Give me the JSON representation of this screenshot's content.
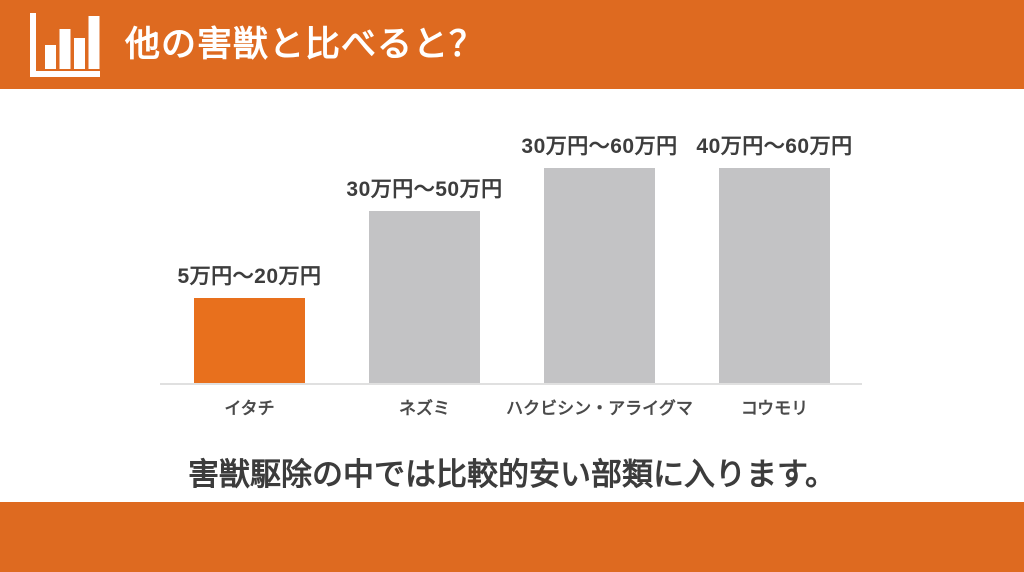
{
  "header": {
    "title": "他の害獣と比べると？",
    "icon": "bar-chart-icon"
  },
  "chart_data": {
    "type": "bar",
    "title": "他の害獣と比べると？",
    "categories": [
      "イタチ",
      "ネズミ",
      "ハクビシン・アライグマ",
      "コウモリ"
    ],
    "value_labels": [
      "5万円〜20万円",
      "30万円〜50万円",
      "30万円〜60万円",
      "40万円〜60万円"
    ],
    "ranges_man_yen": [
      [
        5,
        20
      ],
      [
        30,
        50
      ],
      [
        30,
        60
      ],
      [
        40,
        60
      ]
    ],
    "unit": "万円",
    "bar_height_pct": [
      40,
      80,
      100,
      100
    ],
    "bar_colors": [
      "#E8701D",
      "#C3C3C5",
      "#C3C3C5",
      "#C3C3C5"
    ],
    "highlight_index": 0,
    "legend": "none",
    "gridlines": false,
    "baseline": true,
    "xlabel": "",
    "ylabel": ""
  },
  "note": "害獣駆除の中では比較的安い部類に入ります。",
  "colors": {
    "accent": "#DE6A20",
    "bar_highlight": "#E8701D",
    "bar_default": "#C3C3C5",
    "baseline": "#E0E0E0",
    "value_text": "#3D3D3D",
    "category_text": "#4A4A4A",
    "note_text": "#3C3C3C",
    "title_text": "#FFFFFF",
    "background": "#FFFFFF"
  }
}
